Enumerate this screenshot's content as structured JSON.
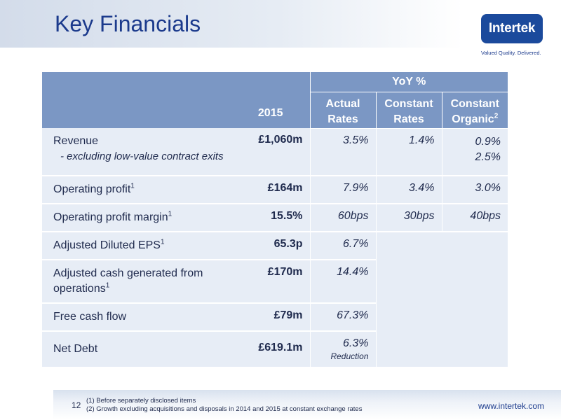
{
  "slide": {
    "title": "Key Financials",
    "brand": {
      "logo_text": "Intertek",
      "tagline": "Valued Quality. Delivered."
    }
  },
  "table": {
    "headers": {
      "year": "2015",
      "yoy_group": "YoY %",
      "actual_l1": "Actual",
      "actual_l2": "Rates",
      "constant_l1": "Constant",
      "constant_l2": "Rates",
      "organic_l1": "Constant",
      "organic_l2": "Organic",
      "organic_note": "2"
    },
    "rows": [
      {
        "label": "Revenue",
        "sub_label": "- excluding low-value contract exits",
        "value": "£1,060m",
        "actual": "3.5%",
        "constant": "1.4%",
        "organic": "0.9%",
        "organic_sub": "2.5%"
      },
      {
        "label": "Operating profit",
        "note": "1",
        "value": "£164m",
        "actual": "7.9%",
        "constant": "3.4%",
        "organic": "3.0%"
      },
      {
        "label": "Operating profit margin",
        "note": "1",
        "value": "15.5%",
        "actual": "60bps",
        "constant": "30bps",
        "organic": "40bps"
      },
      {
        "label": "Adjusted Diluted EPS",
        "note": "1",
        "value": "65.3p",
        "actual": "6.7%"
      },
      {
        "label": "Adjusted cash generated from",
        "label_l2": "operations",
        "note": "1",
        "value": "£170m",
        "actual": "14.4%"
      },
      {
        "label": "Free cash flow",
        "value": "£79m",
        "actual": "67.3%"
      },
      {
        "label": "Net Debt",
        "value": "£619.1m",
        "actual": "6.3%",
        "actual_sub": "Reduction"
      }
    ]
  },
  "footer": {
    "page_number": "12",
    "note1": "(1)  Before separately disclosed items",
    "note2": "(2)  Growth excluding acquisitions and disposals in 2014 and 2015 at constant exchange rates",
    "website": "www.intertek.com"
  }
}
